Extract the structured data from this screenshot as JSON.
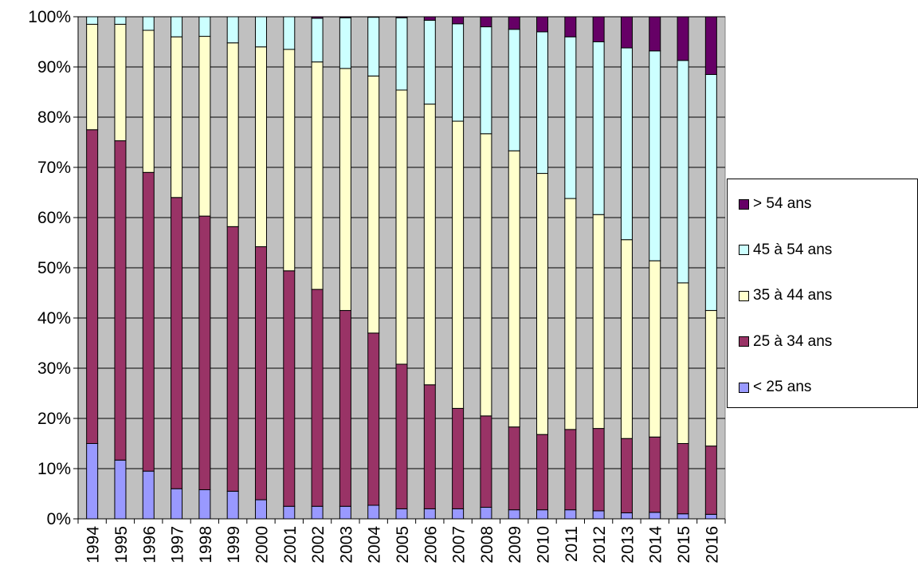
{
  "chart_data": {
    "type": "bar",
    "stacked": true,
    "percent": true,
    "categories": [
      "1994",
      "1995",
      "1996",
      "1997",
      "1998",
      "1999",
      "2000",
      "2001",
      "2002",
      "2003",
      "2004",
      "2005",
      "2006",
      "2007",
      "2008",
      "2009",
      "2010",
      "2011",
      "2012",
      "2013",
      "2014",
      "2015",
      "2016"
    ],
    "series": [
      {
        "name": "< 25 ans",
        "color": "#9999ff",
        "values": [
          15,
          11.7,
          9.5,
          6,
          5.8,
          5.5,
          3.8,
          2.5,
          2.5,
          2.5,
          2.7,
          2,
          2,
          2,
          2.3,
          1.8,
          1.8,
          1.8,
          1.6,
          1.2,
          1.3,
          1,
          0.9
        ]
      },
      {
        "name": "25 à 34 ans",
        "color": "#993366",
        "values": [
          62.5,
          63.6,
          59.5,
          58,
          54.5,
          52.7,
          50.4,
          46.9,
          43.2,
          39,
          34.3,
          28.8,
          24.7,
          20,
          18.2,
          16.5,
          15,
          16,
          16.4,
          14.8,
          15,
          14,
          13.6
        ]
      },
      {
        "name": "35 à 44 ans",
        "color": "#ffffcc",
        "values": [
          21,
          23.2,
          28.3,
          32,
          35.8,
          36.6,
          39.8,
          44.1,
          45.3,
          48.2,
          51.2,
          54.6,
          55.9,
          57.2,
          56.2,
          55,
          52,
          46,
          42.6,
          39.6,
          35.1,
          32,
          27
        ]
      },
      {
        "name": "45 à 54 ans",
        "color": "#ccffff",
        "values": [
          1.5,
          1.5,
          2.7,
          4,
          3.9,
          5.2,
          6,
          6.5,
          8.7,
          10.1,
          11.7,
          14.4,
          16.7,
          19.4,
          21.3,
          24.2,
          28.2,
          32.2,
          34.4,
          38.2,
          41.8,
          44.3,
          47
        ]
      },
      {
        "name": "> 54 ans",
        "color": "#660066",
        "values": [
          0,
          0,
          0,
          0,
          0,
          0,
          0,
          0,
          0.3,
          0.2,
          0.1,
          0.2,
          0.7,
          1.4,
          2,
          2.5,
          3,
          4,
          5,
          6.2,
          6.8,
          8.7,
          11.5
        ]
      }
    ],
    "ylim": [
      0,
      100
    ],
    "yticks": [
      "0%",
      "10%",
      "20%",
      "30%",
      "40%",
      "50%",
      "60%",
      "70%",
      "80%",
      "90%",
      "100%"
    ],
    "grid": true,
    "legend_position": "right",
    "legend_order": [
      "> 54 ans",
      "45 à 54 ans",
      "35 à 44 ans",
      "25 à 34 ans",
      "< 25 ans"
    ],
    "plot_background": "#c0c0c0"
  }
}
